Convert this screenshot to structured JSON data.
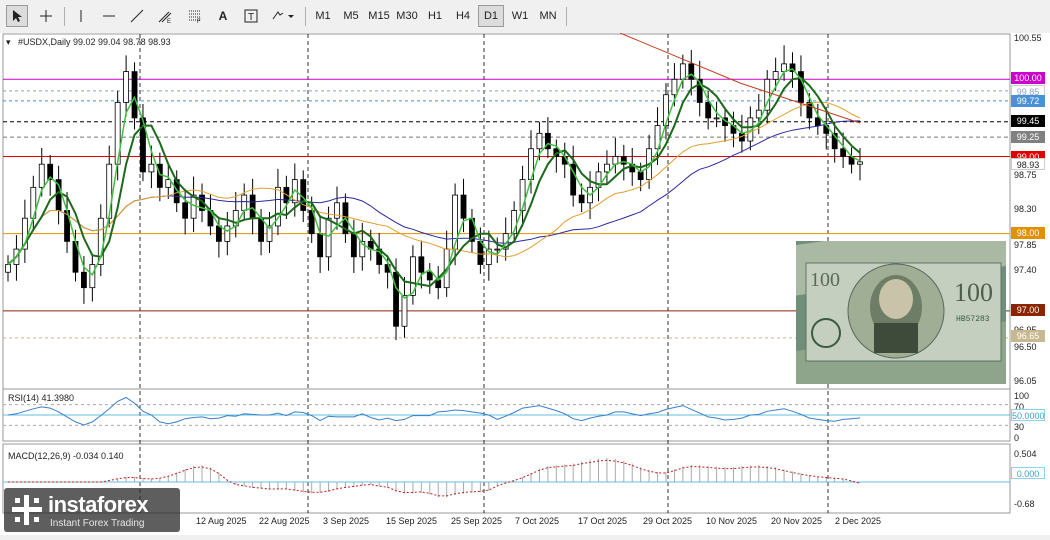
{
  "toolbar": {
    "timeframes": [
      "M1",
      "M5",
      "M15",
      "M30",
      "H1",
      "H4",
      "D1",
      "W1",
      "MN"
    ],
    "selected_timeframe": "D1"
  },
  "main_panel": {
    "symbol_info": "#USDX,Daily  99.02 99.04 98.78 98.93",
    "price_axis": [
      "100.55",
      "100.10",
      "99.65",
      "99.20",
      "98.75",
      "98.30",
      "97.85",
      "97.40",
      "96.95",
      "96.50",
      "96.05"
    ],
    "price_labels": [
      {
        "text": "100.00",
        "bg": "#cc00cc",
        "fg": "#ffffff"
      },
      {
        "text": "99.85",
        "bg": "#ffffff",
        "fg": "#8aa0c8"
      },
      {
        "text": "99.72",
        "bg": "#4a90d9",
        "fg": "#ffffff"
      },
      {
        "text": "99.45",
        "bg": "#000000",
        "fg": "#ffffff"
      },
      {
        "text": "99.25",
        "bg": "#808080",
        "fg": "#ffffff"
      },
      {
        "text": "99.00",
        "bg": "#e00000",
        "fg": "#ffffff"
      },
      {
        "text": "98.93",
        "bg": "#ffffff",
        "fg": "#222222"
      },
      {
        "text": "98.00",
        "bg": "#e09000",
        "fg": "#ffffff"
      },
      {
        "text": "97.00",
        "bg": "#8b2500",
        "fg": "#ffffff"
      },
      {
        "text": "96.65",
        "bg": "#c8b890",
        "fg": "#ffffff"
      }
    ]
  },
  "rsi_panel": {
    "label": "RSI(14) 41.3980",
    "axis": [
      "100",
      "70",
      "30",
      "0"
    ],
    "level_label": "50.0000"
  },
  "macd_panel": {
    "label": "MACD(12,26,9) -0.034 0.140",
    "axis": [
      "0.504",
      "-0.68"
    ],
    "zero_label": "0.000"
  },
  "dates": [
    "12 Aug 2025",
    "22 Aug 2025",
    "3 Sep 2025",
    "15 Sep 2025",
    "25 Sep 2025",
    "7 Oct 2025",
    "17 Oct 2025",
    "29 Oct 2025",
    "10 Nov 2025",
    "20 Nov 2025",
    "2 Dec 2025"
  ],
  "logo": {
    "name": "instaforex",
    "tagline": "Instant Forex Trading"
  },
  "chart_data": {
    "type": "candlestick",
    "symbol": "#USDX",
    "timeframe": "Daily",
    "last_bar": {
      "open": 99.02,
      "high": 99.04,
      "low": 98.78,
      "close": 98.93
    },
    "closes": [
      97.6,
      97.8,
      98.2,
      98.6,
      98.9,
      98.7,
      98.3,
      97.9,
      97.5,
      97.3,
      97.6,
      98.2,
      98.9,
      99.7,
      100.1,
      99.5,
      98.8,
      98.9,
      98.6,
      98.7,
      98.4,
      98.2,
      98.5,
      98.3,
      98.1,
      97.9,
      98.1,
      98.3,
      98.5,
      98.2,
      97.9,
      98.1,
      98.6,
      98.4,
      98.7,
      98.3,
      98.0,
      97.7,
      98.2,
      98.4,
      98.0,
      97.7,
      97.9,
      97.8,
      97.6,
      97.5,
      96.8,
      97.2,
      97.7,
      97.5,
      97.4,
      97.3,
      97.8,
      98.5,
      98.2,
      97.9,
      97.6,
      97.8,
      97.8,
      98.0,
      98.3,
      98.7,
      99.1,
      99.3,
      99.1,
      99.0,
      98.9,
      98.5,
      98.4,
      98.6,
      98.8,
      98.9,
      99.0,
      98.9,
      98.8,
      98.7,
      99.1,
      99.4,
      99.8,
      100.0,
      100.2,
      100.0,
      99.7,
      99.5,
      99.5,
      99.4,
      99.3,
      99.2,
      99.5,
      99.6,
      100.0,
      100.1,
      100.2,
      100.1,
      99.7,
      99.5,
      99.4,
      99.3,
      99.1,
      99.0,
      98.9,
      98.93
    ],
    "ma_blue_end": 98.6,
    "ma_orange_end": 99.1,
    "ma_red_end": 99.5,
    "horizontal_levels": [
      100.0,
      99.85,
      99.72,
      99.45,
      99.25,
      99.0,
      98.0,
      97.0,
      96.65
    ],
    "ylim": [
      96.0,
      100.6
    ]
  }
}
